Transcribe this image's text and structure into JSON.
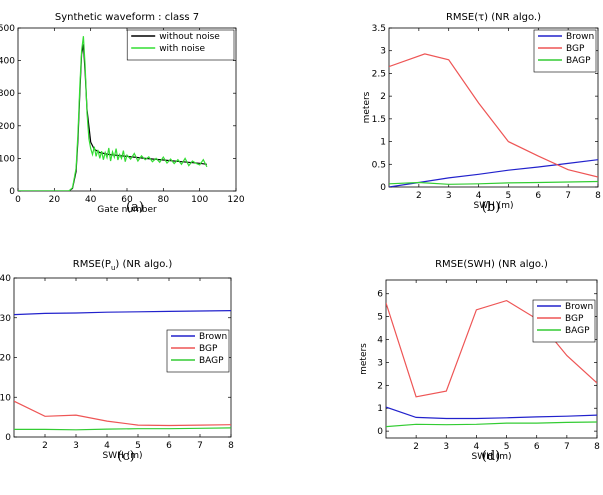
{
  "captions": [
    "(a)",
    "(b)",
    "(c)",
    "(d)"
  ],
  "chart_data": [
    {
      "type": "line",
      "title": "Synthetic waveform : class 7",
      "xlabel": "Gate number",
      "ylabel": "",
      "xlim": [
        0,
        120
      ],
      "ylim": [
        0,
        500
      ],
      "xticks": [
        0,
        20,
        40,
        60,
        80,
        100,
        120
      ],
      "yticks": [
        0,
        100,
        200,
        300,
        400,
        500
      ],
      "legend_position": "top-right",
      "series": [
        {
          "name": "without noise",
          "color": "#000000",
          "x": [
            0,
            28,
            30,
            32,
            33,
            34,
            35,
            36,
            37,
            38,
            40,
            42,
            45,
            50,
            60,
            70,
            80,
            90,
            100,
            104
          ],
          "y": [
            0,
            0,
            8,
            60,
            160,
            300,
            420,
            450,
            360,
            250,
            150,
            128,
            118,
            112,
            106,
            100,
            95,
            90,
            85,
            82
          ]
        },
        {
          "name": "with noise",
          "color": "#33dd33",
          "x": [
            0,
            28,
            30,
            32,
            33,
            34,
            35,
            36,
            37,
            38,
            39,
            40,
            41,
            42,
            43,
            44,
            45,
            46,
            47,
            48,
            49,
            50,
            51,
            52,
            53,
            54,
            55,
            56,
            57,
            58,
            59,
            60,
            62,
            64,
            66,
            68,
            70,
            72,
            74,
            76,
            78,
            80,
            82,
            84,
            86,
            88,
            90,
            92,
            94,
            96,
            98,
            100,
            102,
            104
          ],
          "y": [
            0,
            0,
            10,
            70,
            180,
            320,
            430,
            475,
            380,
            240,
            160,
            130,
            112,
            136,
            106,
            126,
            100,
            122,
            96,
            118,
            102,
            132,
            92,
            120,
            104,
            130,
            95,
            112,
            100,
            124,
            90,
            110,
            98,
            115,
            92,
            108,
            96,
            105,
            90,
            100,
            88,
            104,
            86,
            98,
            84,
            96,
            82,
            100,
            78,
            92,
            85,
            80,
            96,
            74
          ]
        }
      ]
    },
    {
      "type": "line",
      "title": "RMSE(τ) (NR algo.)",
      "xlabel": "SWH (m)",
      "ylabel": "meters",
      "xlim": [
        1,
        8
      ],
      "ylim": [
        0,
        3.5
      ],
      "xticks": [
        2,
        3,
        4,
        5,
        6,
        7,
        8
      ],
      "yticks": [
        0,
        0.5,
        1,
        1.5,
        2,
        2.5,
        3,
        3.5
      ],
      "legend_position": "top-right",
      "series": [
        {
          "name": "Brown",
          "color": "#2222cc",
          "x": [
            1,
            2,
            3,
            4,
            5,
            6,
            7,
            8
          ],
          "y": [
            0.0,
            0.1,
            0.2,
            0.28,
            0.37,
            0.44,
            0.52,
            0.6
          ]
        },
        {
          "name": "BGP",
          "color": "#ee5555",
          "x": [
            1,
            2.2,
            3,
            4,
            5,
            6,
            7,
            8
          ],
          "y": [
            2.65,
            2.93,
            2.8,
            1.85,
            1.0,
            0.68,
            0.38,
            0.22
          ]
        },
        {
          "name": "BAGP",
          "color": "#33cc33",
          "x": [
            1,
            2,
            3,
            4,
            5,
            6,
            7,
            8
          ],
          "y": [
            0.07,
            0.1,
            0.06,
            0.07,
            0.09,
            0.1,
            0.11,
            0.12
          ]
        }
      ]
    },
    {
      "type": "line",
      "title": "RMSE(P",
      "title_sub": "u",
      "title_rest": ") (NR algo.)",
      "xlabel": "SWH (m)",
      "ylabel": "",
      "xlim": [
        1,
        8
      ],
      "ylim": [
        0,
        40
      ],
      "xticks": [
        2,
        3,
        4,
        5,
        6,
        7,
        8
      ],
      "yticks": [
        0,
        10,
        20,
        30,
        40
      ],
      "legend_position": "center-right",
      "series": [
        {
          "name": "Brown",
          "color": "#2222cc",
          "x": [
            1,
            2,
            3,
            4,
            5,
            6,
            7,
            8
          ],
          "y": [
            30.8,
            31.1,
            31.2,
            31.4,
            31.5,
            31.6,
            31.7,
            31.8
          ]
        },
        {
          "name": "BGP",
          "color": "#ee5555",
          "x": [
            1,
            2,
            3,
            4,
            5,
            6,
            7,
            8
          ],
          "y": [
            9.0,
            5.2,
            5.5,
            4.0,
            3.0,
            2.9,
            3.0,
            3.1
          ]
        },
        {
          "name": "BAGP",
          "color": "#33cc33",
          "x": [
            1,
            2,
            3,
            4,
            5,
            6,
            7,
            8
          ],
          "y": [
            1.9,
            1.9,
            1.8,
            2.0,
            2.1,
            2.1,
            2.2,
            2.3
          ]
        }
      ]
    },
    {
      "type": "line",
      "title": "RMSE(SWH) (NR algo.)",
      "xlabel": "SWH (m)",
      "ylabel": "meters",
      "xlim": [
        1,
        8
      ],
      "ylim": [
        -0.3,
        6.6
      ],
      "xticks": [
        2,
        3,
        4,
        5,
        6,
        7,
        8
      ],
      "yticks": [
        0,
        1,
        2,
        3,
        4,
        5,
        6
      ],
      "legend_position": "center-right",
      "series": [
        {
          "name": "Brown",
          "color": "#2222cc",
          "x": [
            1,
            2,
            3,
            4,
            5,
            6,
            7,
            8
          ],
          "y": [
            1.05,
            0.6,
            0.55,
            0.55,
            0.58,
            0.62,
            0.65,
            0.7
          ]
        },
        {
          "name": "BGP",
          "color": "#ee5555",
          "x": [
            1,
            2,
            3,
            4,
            5,
            6,
            7,
            8
          ],
          "y": [
            5.6,
            1.5,
            1.75,
            5.3,
            5.7,
            4.9,
            3.3,
            2.1
          ]
        },
        {
          "name": "BAGP",
          "color": "#33cc33",
          "x": [
            1,
            2,
            3,
            4,
            5,
            6,
            7,
            8
          ],
          "y": [
            0.2,
            0.3,
            0.28,
            0.3,
            0.35,
            0.35,
            0.38,
            0.4
          ]
        }
      ]
    }
  ]
}
